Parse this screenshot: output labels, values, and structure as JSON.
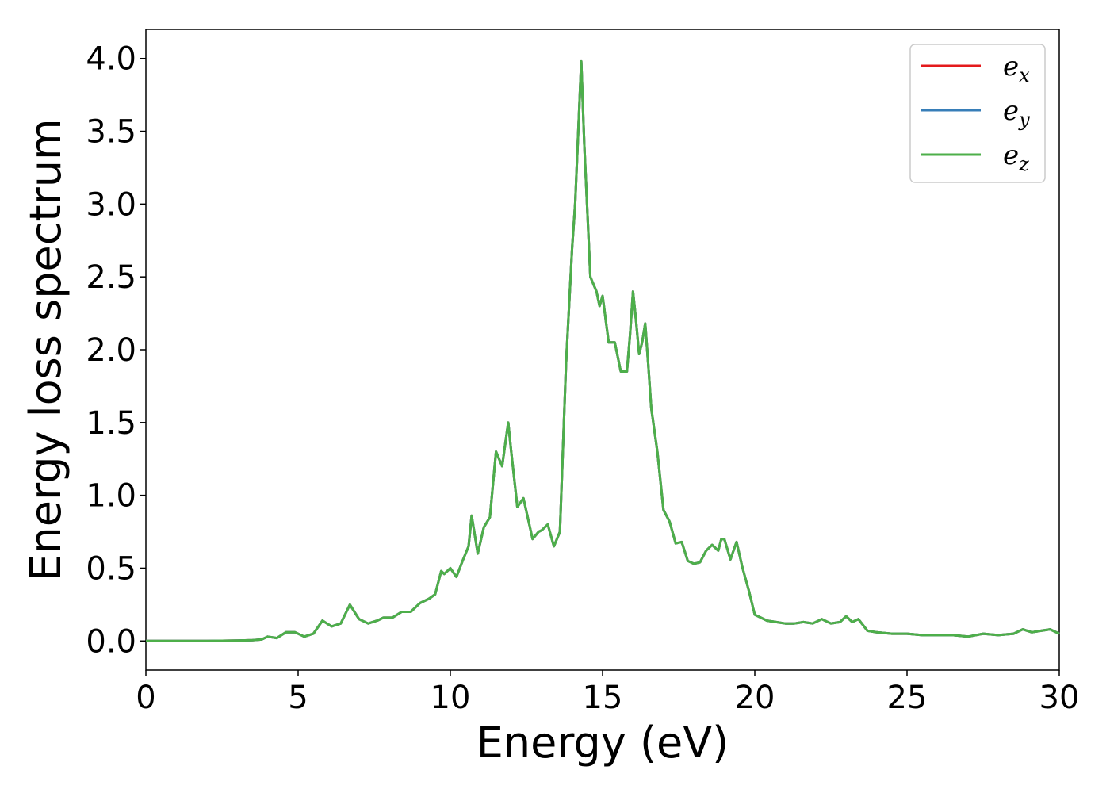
{
  "chart_data": {
    "type": "line",
    "xlabel": "Energy (eV)",
    "ylabel": "Energy loss spectrum",
    "xlim": [
      0,
      30
    ],
    "ylim": [
      -0.2,
      4.2
    ],
    "x_ticks": [
      "0",
      "5",
      "10",
      "15",
      "20",
      "25",
      "30"
    ],
    "y_ticks": [
      "0.0",
      "0.5",
      "1.0",
      "1.5",
      "2.0",
      "2.5",
      "3.0",
      "3.5",
      "4.0"
    ],
    "grid": false,
    "legend_position": "top-right",
    "series": [
      {
        "name": "e",
        "subscript": "x",
        "color": "#e41a1c",
        "points": "shared"
      },
      {
        "name": "e",
        "subscript": "y",
        "color": "#377eb8",
        "points": "shared"
      },
      {
        "name": "e",
        "subscript": "z",
        "color": "#4daf4a",
        "points": "shared"
      }
    ],
    "points": [
      [
        0,
        0.0
      ],
      [
        1,
        0.0
      ],
      [
        2,
        0.0
      ],
      [
        3,
        0.003
      ],
      [
        3.5,
        0.006
      ],
      [
        3.8,
        0.01
      ],
      [
        4.0,
        0.03
      ],
      [
        4.3,
        0.02
      ],
      [
        4.6,
        0.06
      ],
      [
        4.9,
        0.06
      ],
      [
        5.2,
        0.03
      ],
      [
        5.5,
        0.05
      ],
      [
        5.8,
        0.14
      ],
      [
        6.1,
        0.1
      ],
      [
        6.4,
        0.12
      ],
      [
        6.7,
        0.25
      ],
      [
        7.0,
        0.15
      ],
      [
        7.3,
        0.12
      ],
      [
        7.6,
        0.14
      ],
      [
        7.8,
        0.16
      ],
      [
        8.1,
        0.16
      ],
      [
        8.4,
        0.2
      ],
      [
        8.7,
        0.2
      ],
      [
        9.0,
        0.26
      ],
      [
        9.3,
        0.29
      ],
      [
        9.5,
        0.32
      ],
      [
        9.7,
        0.48
      ],
      [
        9.8,
        0.46
      ],
      [
        10.0,
        0.5
      ],
      [
        10.2,
        0.44
      ],
      [
        10.4,
        0.55
      ],
      [
        10.6,
        0.65
      ],
      [
        10.7,
        0.86
      ],
      [
        10.9,
        0.6
      ],
      [
        11.1,
        0.78
      ],
      [
        11.3,
        0.85
      ],
      [
        11.5,
        1.3
      ],
      [
        11.7,
        1.2
      ],
      [
        11.9,
        1.5
      ],
      [
        12.0,
        1.3
      ],
      [
        12.2,
        0.92
      ],
      [
        12.4,
        0.98
      ],
      [
        12.7,
        0.7
      ],
      [
        12.9,
        0.75
      ],
      [
        13.0,
        0.76
      ],
      [
        13.2,
        0.8
      ],
      [
        13.4,
        0.65
      ],
      [
        13.6,
        0.75
      ],
      [
        13.8,
        1.9
      ],
      [
        14.0,
        2.7
      ],
      [
        14.1,
        3.0
      ],
      [
        14.3,
        3.98
      ],
      [
        14.4,
        3.4
      ],
      [
        14.6,
        2.5
      ],
      [
        14.8,
        2.4
      ],
      [
        14.9,
        2.3
      ],
      [
        15.0,
        2.37
      ],
      [
        15.2,
        2.05
      ],
      [
        15.4,
        2.05
      ],
      [
        15.6,
        1.85
      ],
      [
        15.8,
        1.85
      ],
      [
        15.9,
        2.1
      ],
      [
        16.0,
        2.4
      ],
      [
        16.1,
        2.2
      ],
      [
        16.2,
        1.97
      ],
      [
        16.3,
        2.05
      ],
      [
        16.4,
        2.18
      ],
      [
        16.5,
        1.9
      ],
      [
        16.6,
        1.6
      ],
      [
        16.8,
        1.3
      ],
      [
        17.0,
        0.9
      ],
      [
        17.2,
        0.82
      ],
      [
        17.4,
        0.67
      ],
      [
        17.6,
        0.68
      ],
      [
        17.8,
        0.55
      ],
      [
        18.0,
        0.53
      ],
      [
        18.2,
        0.54
      ],
      [
        18.4,
        0.62
      ],
      [
        18.6,
        0.66
      ],
      [
        18.8,
        0.62
      ],
      [
        18.9,
        0.7
      ],
      [
        19.0,
        0.7
      ],
      [
        19.2,
        0.56
      ],
      [
        19.4,
        0.68
      ],
      [
        19.6,
        0.5
      ],
      [
        19.8,
        0.35
      ],
      [
        20.0,
        0.18
      ],
      [
        20.2,
        0.16
      ],
      [
        20.4,
        0.14
      ],
      [
        20.7,
        0.13
      ],
      [
        21.0,
        0.12
      ],
      [
        21.3,
        0.12
      ],
      [
        21.6,
        0.13
      ],
      [
        21.9,
        0.12
      ],
      [
        22.2,
        0.15
      ],
      [
        22.5,
        0.12
      ],
      [
        22.8,
        0.13
      ],
      [
        23.0,
        0.17
      ],
      [
        23.2,
        0.13
      ],
      [
        23.4,
        0.15
      ],
      [
        23.7,
        0.07
      ],
      [
        24.0,
        0.06
      ],
      [
        24.5,
        0.05
      ],
      [
        25.0,
        0.05
      ],
      [
        25.5,
        0.04
      ],
      [
        26.0,
        0.04
      ],
      [
        26.5,
        0.04
      ],
      [
        27.0,
        0.03
      ],
      [
        27.5,
        0.05
      ],
      [
        28.0,
        0.04
      ],
      [
        28.5,
        0.05
      ],
      [
        28.8,
        0.08
      ],
      [
        29.1,
        0.06
      ],
      [
        29.4,
        0.07
      ],
      [
        29.7,
        0.08
      ],
      [
        30.0,
        0.05
      ]
    ]
  }
}
